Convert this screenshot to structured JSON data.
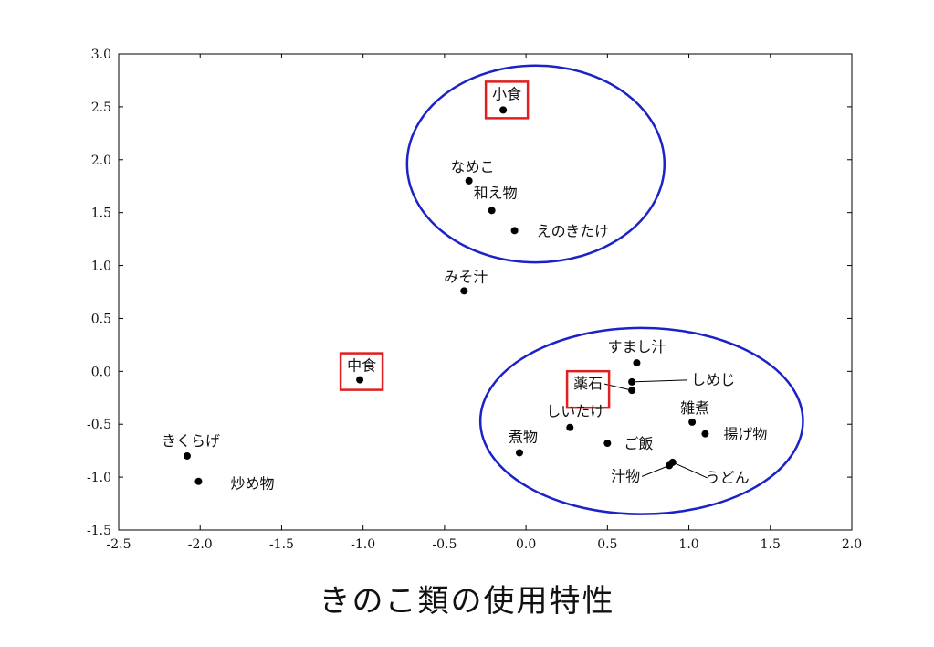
{
  "chart_data": {
    "type": "scatter",
    "title": "きのこ類の使用特性",
    "xlabel": "",
    "ylabel": "",
    "xlim": [
      -2.5,
      2.0
    ],
    "ylim": [
      -1.5,
      3.0
    ],
    "xticks": [
      "-2.5",
      "-2.0",
      "-1.5",
      "-1.0",
      "-0.5",
      "0.0",
      "0.5",
      "1.0",
      "1.5",
      "2.0"
    ],
    "yticks": [
      "3.0",
      "2.5",
      "2.0",
      "1.5",
      "1.0",
      "0.5",
      "0.0",
      "-0.5",
      "-1.0",
      "-1.5"
    ],
    "grid": false,
    "points": [
      {
        "label": "小食",
        "x": -0.14,
        "y": 2.47
      },
      {
        "label": "なめこ",
        "x": -0.35,
        "y": 1.8
      },
      {
        "label": "和え物",
        "x": -0.21,
        "y": 1.52
      },
      {
        "label": "えのきたけ",
        "x": -0.07,
        "y": 1.33
      },
      {
        "label": "みそ汁",
        "x": -0.38,
        "y": 0.76
      },
      {
        "label": "中食",
        "x": -1.02,
        "y": -0.08
      },
      {
        "label": "すまし汁",
        "x": 0.68,
        "y": 0.08
      },
      {
        "label": "しめじ",
        "x": 0.65,
        "y": -0.1
      },
      {
        "label": "薬石",
        "x": 0.65,
        "y": -0.18
      },
      {
        "label": "しいたけ",
        "x": 0.27,
        "y": -0.53
      },
      {
        "label": "雑煮",
        "x": 1.02,
        "y": -0.48
      },
      {
        "label": "揚げ物",
        "x": 1.1,
        "y": -0.59
      },
      {
        "label": "煮物",
        "x": -0.04,
        "y": -0.77
      },
      {
        "label": "ご飯",
        "x": 0.5,
        "y": -0.68
      },
      {
        "label": "汁物",
        "x": 0.88,
        "y": -0.89
      },
      {
        "label": "うどん",
        "x": 0.9,
        "y": -0.86
      },
      {
        "label": "きくらげ",
        "x": -2.08,
        "y": -0.8
      },
      {
        "label": "炒め物",
        "x": -2.01,
        "y": -1.04
      }
    ],
    "highlighted_labels": [
      "小食",
      "中食",
      "薬石"
    ],
    "highlight_box_color": "#e02020",
    "cluster_ellipse_color": "#1a22c8",
    "cluster_ellipses": [
      {
        "cx": 0.06,
        "cy": 1.96,
        "rx": 0.79,
        "ry": 0.93
      },
      {
        "cx": 0.71,
        "cy": -0.47,
        "rx": 0.99,
        "ry": 0.88
      }
    ]
  }
}
